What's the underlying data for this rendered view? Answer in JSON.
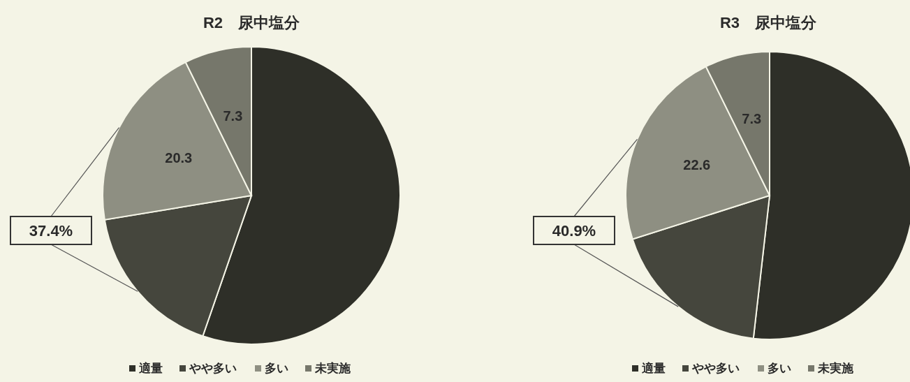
{
  "chart_data": [
    {
      "type": "pie",
      "title": "R2　尿中塩分",
      "categories": [
        "適量",
        "やや多い",
        "多い",
        "未実施"
      ],
      "values": [
        55.3,
        17.1,
        20.3,
        7.3
      ],
      "value_labels": [
        null,
        null,
        "20.3",
        "7.3"
      ],
      "colors": [
        "#2e2f28",
        "#45463d",
        "#8e8f82",
        "#76776b"
      ],
      "legend": "bottom",
      "annotations": [
        "37.4%"
      ]
    },
    {
      "type": "pie",
      "title": "R3　尿中塩分",
      "categories": [
        "適量",
        "やや多い",
        "多い",
        "未実施"
      ],
      "values": [
        51.8,
        18.3,
        22.6,
        7.3
      ],
      "value_labels": [
        null,
        null,
        "22.6",
        "7.3"
      ],
      "colors": [
        "#2e2f28",
        "#45463d",
        "#8e8f82",
        "#76776b"
      ],
      "legend": "bottom",
      "annotations": [
        "40.9%"
      ]
    }
  ]
}
